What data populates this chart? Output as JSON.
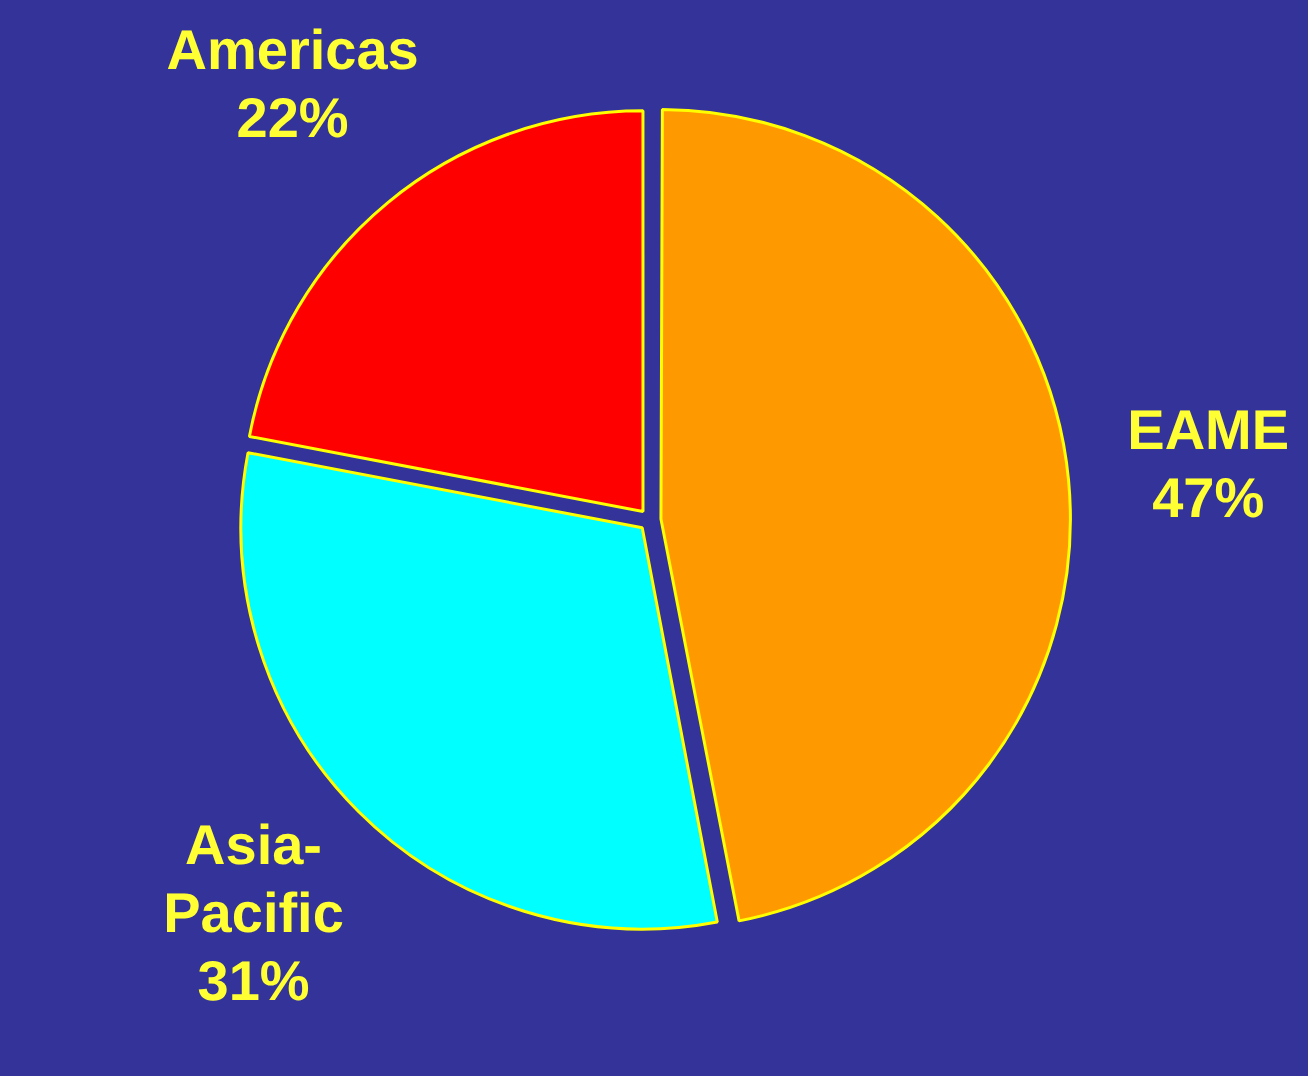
{
  "chart_data": {
    "type": "pie",
    "categories": [
      "EAME",
      "Asia-Pacific",
      "Americas"
    ],
    "values": [
      47,
      31,
      22
    ],
    "colors": [
      "#ff9900",
      "#00ffff",
      "#ff0000"
    ],
    "value_labels": [
      "47%",
      "31%",
      "22%"
    ],
    "legend": false
  }
}
